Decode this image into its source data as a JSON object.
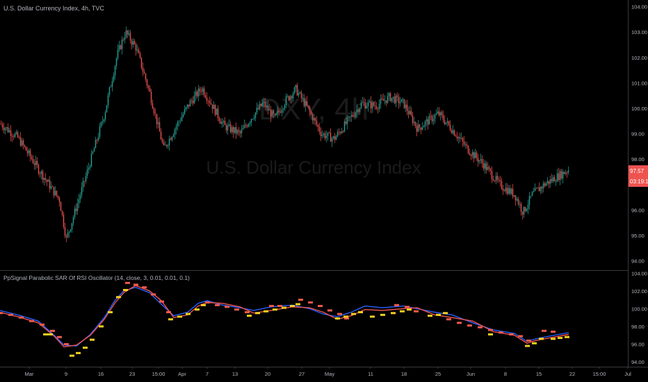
{
  "header": {
    "symbol_title": "U.S. Dollar Currency Index, 4h, TVC"
  },
  "watermark": {
    "ticker": "DXY, 4h",
    "name": "U.S. Dollar Currency Index"
  },
  "colors": {
    "background": "#000000",
    "up_candle": "#26a69a",
    "down_candle": "#ef5350",
    "sar_bear": "#f05a4a",
    "sar_bull": "#f5d020",
    "line_blue": "#2962ff",
    "line_red": "#ef5350",
    "price_label_bg": "#ef5350",
    "text": "#b2b5be",
    "watermark": "#1b1b1b"
  },
  "chart_data": {
    "type": "candlestick",
    "title": "U.S. Dollar Currency Index, 4h, TVC",
    "price_axis": {
      "ylim": [
        93.85,
        104.1
      ],
      "ticks": [
        "104.00",
        "103.00",
        "102.00",
        "101.00",
        "100.00",
        "99.00",
        "98.00",
        "97.00",
        "96.00",
        "95.00",
        "94.00"
      ]
    },
    "last_price": "97.57",
    "countdown": "03:19:17",
    "x_axis": {
      "labels": [
        "Mar",
        "9",
        "16",
        "23",
        "15:00",
        "Apr",
        "7",
        "13",
        "20",
        "27",
        "May",
        "11",
        "18",
        "25",
        "Jun",
        "8",
        "15",
        "22",
        "15:00",
        "Jul"
      ]
    },
    "price_path": [
      [
        0,
        99.4
      ],
      [
        25,
        98.85
      ],
      [
        55,
        97.6
      ],
      [
        85,
        96.4
      ],
      [
        95,
        94.85
      ],
      [
        108,
        96.0
      ],
      [
        125,
        97.5
      ],
      [
        150,
        99.8
      ],
      [
        168,
        102.1
      ],
      [
        180,
        103.0
      ],
      [
        195,
        102.4
      ],
      [
        215,
        100.6
      ],
      [
        235,
        98.4
      ],
      [
        255,
        99.4
      ],
      [
        272,
        100.2
      ],
      [
        290,
        100.8
      ],
      [
        305,
        100.1
      ],
      [
        322,
        99.3
      ],
      [
        345,
        99.0
      ],
      [
        360,
        99.6
      ],
      [
        378,
        100.2
      ],
      [
        395,
        99.6
      ],
      [
        410,
        100.3
      ],
      [
        425,
        100.75
      ],
      [
        442,
        100.0
      ],
      [
        462,
        99.0
      ],
      [
        480,
        98.8
      ],
      [
        500,
        99.5
      ],
      [
        520,
        100.2
      ],
      [
        540,
        100.1
      ],
      [
        560,
        100.45
      ],
      [
        580,
        100.2
      ],
      [
        600,
        99.2
      ],
      [
        630,
        99.8
      ],
      [
        655,
        99.0
      ],
      [
        672,
        98.4
      ],
      [
        695,
        97.8
      ],
      [
        718,
        97.0
      ],
      [
        740,
        96.6
      ],
      [
        752,
        95.9
      ],
      [
        765,
        96.6
      ],
      [
        782,
        97.0
      ],
      [
        800,
        97.3
      ],
      [
        818,
        97.6
      ]
    ],
    "indicator": {
      "title": "PpSignal Parabolic SAR Of RSI Oscillator (14, close, 3, 0.01, 0.01, 0.1)",
      "ylim": [
        93.85,
        104.1
      ],
      "ticks": [
        "104.00",
        "102.00",
        "100.00",
        "98.00",
        "96.00",
        "94.00"
      ],
      "series": [
        {
          "type": "line",
          "color": "#2962ff",
          "points": [
            [
              0,
              99.8
            ],
            [
              30,
              99.2
            ],
            [
              55,
              98.6
            ],
            [
              78,
              97.0
            ],
            [
              92,
              95.9
            ],
            [
              110,
              95.8
            ],
            [
              130,
              97.1
            ],
            [
              150,
              99.0
            ],
            [
              165,
              100.9
            ],
            [
              178,
              102.0
            ],
            [
              195,
              102.4
            ],
            [
              215,
              101.8
            ],
            [
              232,
              100.5
            ],
            [
              250,
              99.2
            ],
            [
              270,
              99.6
            ],
            [
              285,
              100.6
            ],
            [
              298,
              100.9
            ],
            [
              320,
              100.4
            ],
            [
              345,
              100.1
            ],
            [
              365,
              99.8
            ],
            [
              390,
              100.2
            ],
            [
              420,
              100.4
            ],
            [
              445,
              100.0
            ],
            [
              465,
              99.4
            ],
            [
              485,
              99.1
            ],
            [
              505,
              99.6
            ],
            [
              525,
              100.3
            ],
            [
              550,
              100.1
            ],
            [
              580,
              100.3
            ],
            [
              600,
              100.0
            ],
            [
              625,
              99.6
            ],
            [
              650,
              99.3
            ],
            [
              680,
              98.4
            ],
            [
              710,
              97.6
            ],
            [
              740,
              97.2
            ],
            [
              758,
              96.3
            ],
            [
              770,
              96.6
            ],
            [
              790,
              96.9
            ],
            [
              818,
              97.3
            ]
          ]
        },
        {
          "type": "line",
          "color": "#ef5350",
          "points": [
            [
              0,
              99.6
            ],
            [
              30,
              99.0
            ],
            [
              55,
              98.4
            ],
            [
              78,
              96.9
            ],
            [
              92,
              95.7
            ],
            [
              110,
              95.9
            ],
            [
              130,
              97.0
            ],
            [
              150,
              98.8
            ],
            [
              165,
              100.6
            ],
            [
              178,
              101.8
            ],
            [
              195,
              102.6
            ],
            [
              215,
              102.0
            ],
            [
              232,
              100.9
            ],
            [
              250,
              99.0
            ],
            [
              270,
              99.3
            ],
            [
              285,
              100.3
            ],
            [
              298,
              100.7
            ],
            [
              320,
              100.6
            ],
            [
              345,
              100.2
            ],
            [
              365,
              99.5
            ],
            [
              390,
              99.8
            ],
            [
              420,
              100.2
            ],
            [
              445,
              100.1
            ],
            [
              465,
              99.6
            ],
            [
              485,
              98.8
            ],
            [
              505,
              99.2
            ],
            [
              525,
              99.9
            ],
            [
              550,
              99.8
            ],
            [
              580,
              100.0
            ],
            [
              600,
              100.1
            ],
            [
              625,
              99.3
            ],
            [
              650,
              99.0
            ],
            [
              680,
              98.6
            ],
            [
              710,
              97.4
            ],
            [
              740,
              97.0
            ],
            [
              758,
              96.1
            ],
            [
              770,
              96.4
            ],
            [
              790,
              96.7
            ],
            [
              818,
              97.1
            ]
          ]
        },
        {
          "type": "sar",
          "color": "#f05a4a",
          "points": [
            [
              0,
              99.5
            ],
            [
              15,
              99.3
            ],
            [
              30,
              99.0
            ],
            [
              45,
              98.6
            ],
            [
              60,
              98.2
            ],
            [
              75,
              97.5
            ],
            [
              85,
              96.8
            ],
            [
              95,
              96.0
            ],
            [
              183,
              102.9
            ],
            [
              195,
              102.7
            ],
            [
              207,
              102.4
            ],
            [
              220,
              101.6
            ],
            [
              232,
              100.8
            ],
            [
              242,
              99.6
            ],
            [
              298,
              100.7
            ],
            [
              312,
              100.4
            ],
            [
              326,
              100.2
            ],
            [
              340,
              99.9
            ],
            [
              355,
              99.6
            ],
            [
              390,
              100.3
            ],
            [
              402,
              100.3
            ],
            [
              432,
              101.0
            ],
            [
              446,
              100.7
            ],
            [
              460,
              100.3
            ],
            [
              474,
              99.8
            ],
            [
              488,
              99.4
            ],
            [
              498,
              98.9
            ],
            [
              570,
              100.4
            ],
            [
              585,
              100.2
            ],
            [
              598,
              99.7
            ],
            [
              645,
              98.8
            ],
            [
              660,
              98.4
            ],
            [
              675,
              98.1
            ],
            [
              690,
              97.9
            ],
            [
              705,
              97.6
            ],
            [
              720,
              97.3
            ],
            [
              735,
              97.1
            ],
            [
              748,
              96.9
            ],
            [
              760,
              96.4
            ],
            [
              782,
              97.5
            ],
            [
              795,
              97.4
            ]
          ]
        },
        {
          "type": "sar",
          "color": "#f5d020",
          "points": [
            [
              65,
              97.1
            ],
            [
              72,
              97.1
            ],
            [
              103,
              94.7
            ],
            [
              112,
              95.0
            ],
            [
              122,
              95.6
            ],
            [
              132,
              96.5
            ],
            [
              145,
              98.0
            ],
            [
              158,
              99.6
            ],
            [
              170,
              101.3
            ],
            [
              180,
              102.1
            ],
            [
              245,
              98.8
            ],
            [
              258,
              99.1
            ],
            [
              270,
              99.4
            ],
            [
              283,
              99.9
            ],
            [
              292,
              100.4
            ],
            [
              358,
              99.2
            ],
            [
              370,
              99.5
            ],
            [
              382,
              99.7
            ],
            [
              395,
              99.9
            ],
            [
              408,
              100.1
            ],
            [
              420,
              100.3
            ],
            [
              428,
              100.5
            ],
            [
              485,
              98.9
            ],
            [
              497,
              99.1
            ],
            [
              508,
              99.4
            ],
            [
              518,
              99.6
            ],
            [
              535,
              99.1
            ],
            [
              550,
              99.3
            ],
            [
              565,
              99.5
            ],
            [
              578,
              99.7
            ],
            [
              588,
              99.9
            ],
            [
              618,
              99.2
            ],
            [
              630,
              99.3
            ],
            [
              640,
              99.5
            ],
            [
              705,
              97.1
            ],
            [
              758,
              95.8
            ],
            [
              768,
              96.1
            ],
            [
              778,
              96.6
            ],
            [
              795,
              96.6
            ],
            [
              805,
              96.7
            ],
            [
              815,
              96.8
            ]
          ]
        }
      ]
    }
  }
}
